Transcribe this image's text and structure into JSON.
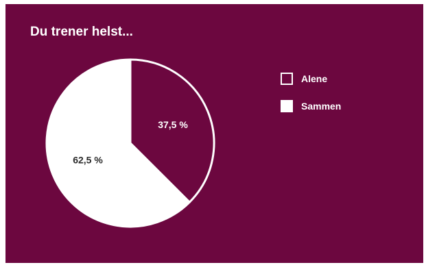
{
  "colors": {
    "background": "#6c073f",
    "light": "#ffffff",
    "dark_text": "#2b2b2b"
  },
  "chart_data": {
    "type": "pie",
    "title": "Du trener helst...",
    "legend_position": "right",
    "slices": [
      {
        "name": "Alene",
        "value": 37.5,
        "label": "37,5 %",
        "color": "#6c073f",
        "label_color": "#ffffff"
      },
      {
        "name": "Sammen",
        "value": 62.5,
        "label": "62,5 %",
        "color": "#ffffff",
        "label_color": "#2b2b2b"
      }
    ]
  }
}
